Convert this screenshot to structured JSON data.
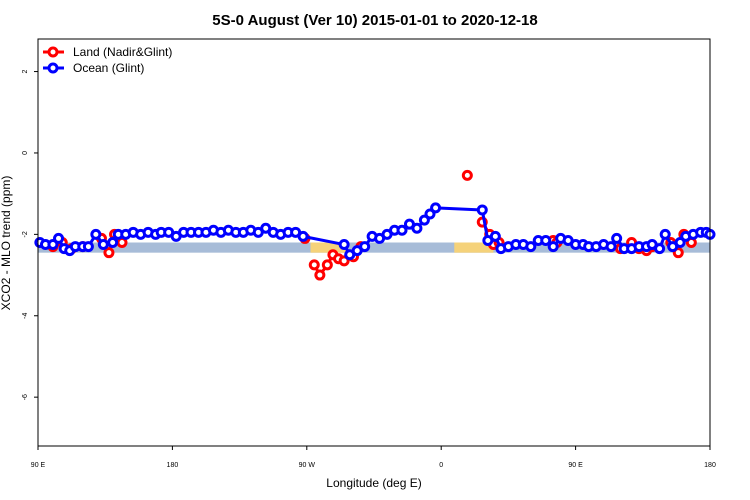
{
  "chart_data": {
    "type": "line",
    "title": "5S-0 August (Ver 10)   2015-01-01 to 2020-12-18",
    "xlabel": "Longitude (deg E)",
    "ylabel": "XCO2 - MLO trend (ppm)",
    "xlim": [
      90,
      450
    ],
    "ylim": [
      -7.2,
      2.8
    ],
    "x_ticks": [
      {
        "value": 90,
        "label": "90 E"
      },
      {
        "value": 162,
        "label": "180"
      },
      {
        "value": 234,
        "label": "90 W"
      },
      {
        "value": 306,
        "label": "0"
      },
      {
        "value": 378,
        "label": "90 E"
      },
      {
        "value": 450,
        "label": "180"
      }
    ],
    "y_ticks": [
      2,
      0,
      -2,
      -4,
      -6
    ],
    "grid": false,
    "legend_position": "top-left",
    "band": {
      "y_range": [
        -2.45,
        -2.2
      ],
      "color": "#a7bcd8",
      "land_color": "#f5d27a",
      "land_x_ranges": [
        [
          236,
          256
        ],
        [
          313,
          334
        ]
      ]
    },
    "series": [
      {
        "name": "Land (Nadir&Glint)",
        "color": "#ff0000",
        "segments": [
          [
            [
              98,
              -2.3
            ],
            [
              103,
              -2.2
            ],
            [
              108,
              -2.35
            ],
            [
              114,
              -2.3
            ]
          ],
          [
            [
              124,
              -2.1
            ],
            [
              128,
              -2.45
            ],
            [
              131,
              -2.0
            ],
            [
              135,
              -2.2
            ]
          ],
          [
            [
              233,
              -2.1
            ]
          ],
          [
            [
              238,
              -2.75
            ],
            [
              241,
              -3.0
            ],
            [
              245,
              -2.75
            ],
            [
              248,
              -2.5
            ],
            [
              251,
              -2.6
            ],
            [
              254,
              -2.65
            ],
            [
              259,
              -2.55
            ],
            [
              263,
              -2.3
            ]
          ],
          [
            [
              320,
              -0.55
            ]
          ],
          [
            [
              328,
              -1.7
            ],
            [
              332,
              -2.0
            ],
            [
              334,
              -2.25
            ],
            [
              337,
              -2.2
            ]
          ],
          [
            [
              366,
              -2.15
            ],
            [
              368,
              -2.2
            ]
          ],
          [
            [
              402,
              -2.35
            ],
            [
              408,
              -2.2
            ],
            [
              412,
              -2.35
            ],
            [
              416,
              -2.4
            ],
            [
              419,
              -2.3
            ]
          ],
          [
            [
              429,
              -2.2
            ],
            [
              433,
              -2.45
            ],
            [
              436,
              -2.0
            ],
            [
              440,
              -2.2
            ]
          ]
        ]
      },
      {
        "name": "Ocean (Glint)",
        "color": "#0000ff",
        "points": [
          [
            91,
            -2.2
          ],
          [
            94,
            -2.25
          ],
          [
            98,
            -2.25
          ],
          [
            101,
            -2.1
          ],
          [
            104,
            -2.35
          ],
          [
            107,
            -2.4
          ],
          [
            110,
            -2.3
          ],
          [
            114,
            -2.3
          ],
          [
            117,
            -2.3
          ],
          [
            121,
            -2.0
          ],
          [
            125,
            -2.25
          ],
          [
            130,
            -2.2
          ],
          [
            133,
            -2.0
          ],
          [
            137,
            -2.0
          ],
          [
            141,
            -1.95
          ],
          [
            145,
            -2.0
          ],
          [
            149,
            -1.95
          ],
          [
            153,
            -2.0
          ],
          [
            156,
            -1.95
          ],
          [
            160,
            -1.95
          ],
          [
            164,
            -2.05
          ],
          [
            168,
            -1.95
          ],
          [
            172,
            -1.95
          ],
          [
            176,
            -1.95
          ],
          [
            180,
            -1.95
          ],
          [
            184,
            -1.9
          ],
          [
            188,
            -1.95
          ],
          [
            192,
            -1.9
          ],
          [
            196,
            -1.95
          ],
          [
            200,
            -1.95
          ],
          [
            204,
            -1.9
          ],
          [
            208,
            -1.95
          ],
          [
            212,
            -1.85
          ],
          [
            216,
            -1.95
          ],
          [
            220,
            -2.0
          ],
          [
            224,
            -1.95
          ],
          [
            228,
            -1.95
          ],
          [
            232,
            -2.05
          ],
          [
            254,
            -2.25
          ],
          [
            257,
            -2.5
          ],
          [
            261,
            -2.4
          ],
          [
            265,
            -2.3
          ],
          [
            269,
            -2.05
          ],
          [
            273,
            -2.1
          ],
          [
            277,
            -2.0
          ],
          [
            281,
            -1.9
          ],
          [
            285,
            -1.9
          ],
          [
            289,
            -1.75
          ],
          [
            293,
            -1.85
          ],
          [
            297,
            -1.65
          ],
          [
            300,
            -1.5
          ],
          [
            303,
            -1.35
          ],
          [
            328,
            -1.4
          ],
          [
            331,
            -2.15
          ],
          [
            335,
            -2.05
          ],
          [
            338,
            -2.35
          ],
          [
            342,
            -2.3
          ],
          [
            346,
            -2.25
          ],
          [
            350,
            -2.25
          ],
          [
            354,
            -2.3
          ],
          [
            358,
            -2.15
          ],
          [
            362,
            -2.15
          ],
          [
            366,
            -2.3
          ],
          [
            370,
            -2.1
          ],
          [
            374,
            -2.15
          ],
          [
            378,
            -2.25
          ],
          [
            382,
            -2.25
          ],
          [
            385,
            -2.3
          ],
          [
            389,
            -2.3
          ],
          [
            393,
            -2.25
          ],
          [
            397,
            -2.3
          ],
          [
            400,
            -2.1
          ],
          [
            404,
            -2.35
          ],
          [
            408,
            -2.35
          ],
          [
            412,
            -2.3
          ],
          [
            416,
            -2.3
          ],
          [
            419,
            -2.25
          ],
          [
            423,
            -2.35
          ],
          [
            426,
            -2.0
          ],
          [
            430,
            -2.3
          ],
          [
            434,
            -2.2
          ],
          [
            437,
            -2.05
          ],
          [
            441,
            -2.0
          ],
          [
            445,
            -1.95
          ],
          [
            448,
            -1.95
          ],
          [
            450,
            -2.0
          ]
        ]
      }
    ]
  }
}
